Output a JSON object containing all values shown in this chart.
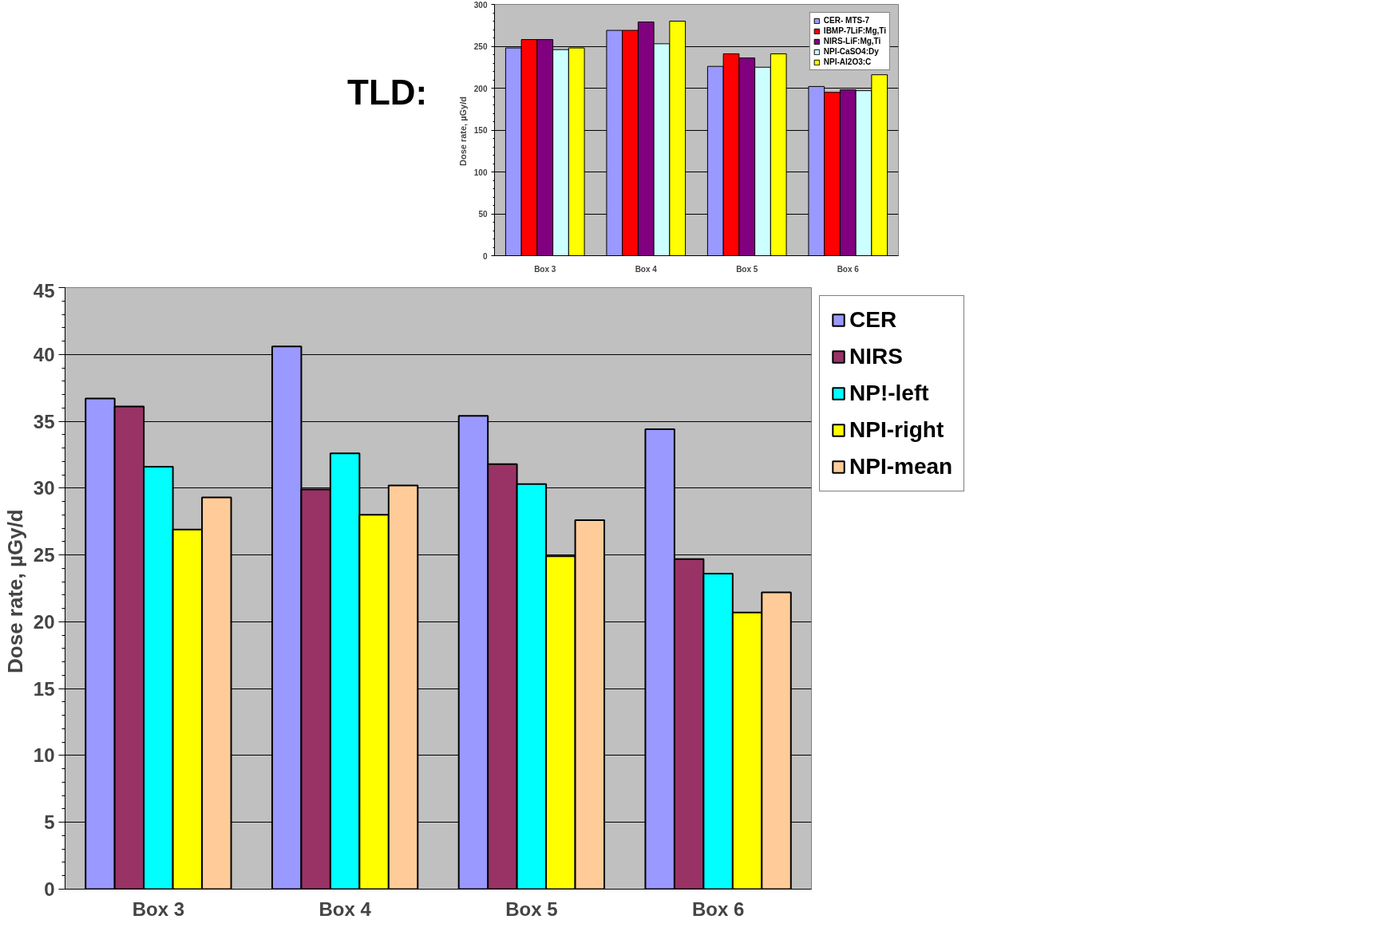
{
  "chart_data": [
    {
      "type": "bar",
      "ylabel": "Dose rate,  µGy/d",
      "categories": [
        "Box 3",
        "Box 4",
        "Box 5",
        "Box 6"
      ],
      "ylim": [
        0,
        45
      ],
      "yticks": [
        0,
        5,
        10,
        15,
        20,
        25,
        30,
        35,
        40,
        45
      ],
      "grid": "y",
      "legend": "right",
      "series": [
        {
          "name": "CER",
          "color": "#9999ff",
          "values": [
            36.7,
            40.6,
            35.4,
            34.4
          ]
        },
        {
          "name": "NIRS",
          "color": "#993366",
          "values": [
            36.1,
            29.9,
            31.8,
            24.7
          ]
        },
        {
          "name": "NP!-left",
          "color": "#00ffff",
          "values": [
            31.6,
            32.6,
            30.3,
            23.6
          ]
        },
        {
          "name": "NPI-right",
          "color": "#ffff00",
          "values": [
            26.9,
            28.0,
            24.9,
            20.7
          ]
        },
        {
          "name": "NPI-mean",
          "color": "#ffcc99",
          "values": [
            29.3,
            30.2,
            27.6,
            22.2
          ]
        }
      ]
    },
    {
      "type": "bar",
      "title": "TLD:",
      "ylabel": "Dose rate,  µGy/d",
      "categories": [
        "Box 3",
        "Box 4",
        "Box 5",
        "Box 6"
      ],
      "ylim": [
        0,
        300
      ],
      "yticks": [
        0,
        50,
        100,
        150,
        200,
        250,
        300
      ],
      "grid": "y",
      "legend": "top right",
      "series": [
        {
          "name": "CER- MTS-7",
          "color": "#9999ff",
          "values": [
            248,
            269,
            226,
            202
          ]
        },
        {
          "name": "IBMP-7LiF:Mg,Ti",
          "color": "#ff0000",
          "values": [
            258,
            269,
            241,
            195
          ]
        },
        {
          "name": "NIRS-LiF:Mg,Ti",
          "color": "#800080",
          "values": [
            258,
            279,
            236,
            198
          ]
        },
        {
          "name": "NPI-CaSO4:Dy",
          "color": "#ccffff",
          "values": [
            246,
            253,
            225,
            197
          ]
        },
        {
          "name": "NPI-Al2O3:C",
          "color": "#ffff00",
          "values": [
            248,
            280,
            241,
            216
          ]
        }
      ]
    }
  ]
}
